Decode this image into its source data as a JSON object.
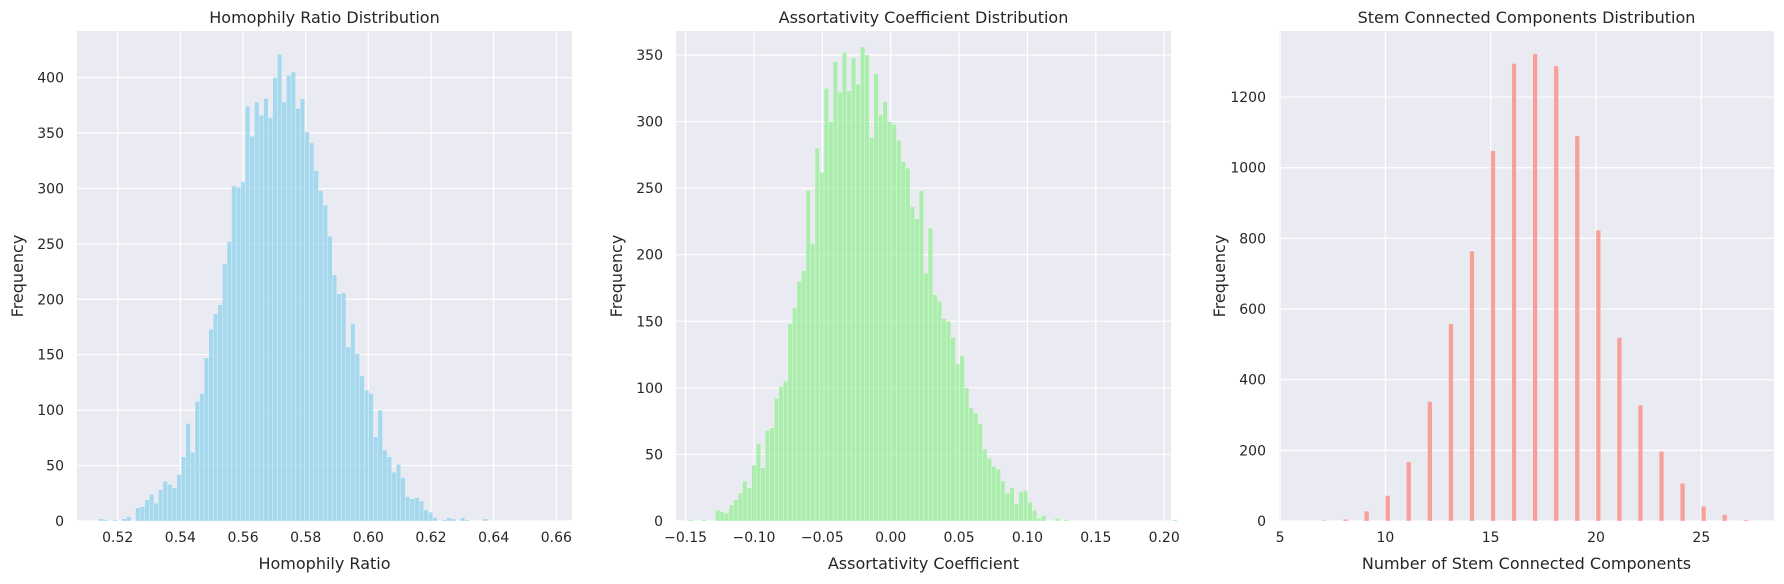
{
  "chart_data": [
    {
      "type": "bar",
      "title": "Homophily Ratio Distribution",
      "xlabel": "Homophily Ratio",
      "ylabel": "Frequency",
      "xlim": [
        0.507,
        0.665
      ],
      "ylim": [
        0,
        442
      ],
      "xticks": [
        0.52,
        0.54,
        0.56,
        0.58,
        0.6,
        0.62,
        0.64,
        0.66
      ],
      "xtick_labels": [
        "0.52",
        "0.54",
        "0.56",
        "0.58",
        "0.60",
        "0.62",
        "0.64",
        "0.66"
      ],
      "yticks": [
        0,
        50,
        100,
        150,
        200,
        250,
        300,
        350,
        400
      ],
      "ytick_labels": [
        "0",
        "50",
        "100",
        "150",
        "200",
        "250",
        "300",
        "350",
        "400"
      ],
      "color": "#87ceeb",
      "bins": {
        "start": 0.514,
        "width": 0.00146
      },
      "values": [
        2,
        1,
        0,
        1,
        0,
        2,
        4,
        0,
        12,
        13,
        19,
        24,
        16,
        28,
        36,
        33,
        30,
        42,
        58,
        88,
        62,
        108,
        115,
        147,
        173,
        187,
        195,
        232,
        252,
        302,
        301,
        306,
        374,
        347,
        378,
        366,
        381,
        364,
        400,
        421,
        378,
        402,
        405,
        372,
        381,
        351,
        341,
        316,
        298,
        285,
        257,
        222,
        205,
        206,
        157,
        178,
        151,
        131,
        118,
        115,
        76,
        100,
        64,
        58,
        44,
        51,
        39,
        22,
        20,
        21,
        18,
        10,
        8,
        3,
        0,
        1,
        3,
        2,
        0,
        3,
        1,
        0,
        0,
        0,
        2
      ]
    },
    {
      "type": "bar",
      "title": "Assortativity Coefficient Distribution",
      "xlabel": "Assortativity Coefficient",
      "ylabel": "Frequency",
      "xlim": [
        -0.157,
        0.205
      ],
      "ylim": [
        0,
        368
      ],
      "xticks": [
        -0.15,
        -0.1,
        -0.05,
        0.0,
        0.05,
        0.1,
        0.15,
        0.2
      ],
      "xtick_labels": [
        "−0.15",
        "−0.10",
        "−0.05",
        "0.00",
        "0.05",
        "0.10",
        "0.15",
        "0.20"
      ],
      "yticks": [
        0,
        50,
        100,
        150,
        200,
        250,
        300,
        350
      ],
      "ytick_labels": [
        "0",
        "50",
        "100",
        "150",
        "200",
        "250",
        "300",
        "350"
      ],
      "color": "#90ee90",
      "bins": {
        "start": -0.148,
        "width": 0.00331
      },
      "values": [
        1,
        0,
        0,
        1,
        0,
        0,
        8,
        7,
        6,
        12,
        16,
        21,
        30,
        25,
        42,
        58,
        40,
        68,
        70,
        92,
        101,
        105,
        148,
        160,
        180,
        188,
        248,
        208,
        280,
        262,
        325,
        300,
        345,
        322,
        352,
        323,
        348,
        328,
        356,
        350,
        288,
        336,
        305,
        315,
        300,
        298,
        286,
        270,
        265,
        236,
        227,
        248,
        186,
        220,
        170,
        165,
        152,
        150,
        138,
        118,
        124,
        100,
        85,
        81,
        73,
        54,
        47,
        41,
        39,
        30,
        21,
        25,
        13,
        22,
        23,
        14,
        8,
        2,
        4,
        0,
        0,
        2,
        0,
        1,
        0,
        0,
        0,
        0,
        0,
        0,
        0,
        0,
        0,
        0,
        0,
        0,
        0,
        0,
        0,
        0,
        0,
        0,
        0,
        0,
        0,
        0,
        0,
        1
      ]
    },
    {
      "type": "bar",
      "title": "Stem Connected Components Distribution",
      "xlabel": "Number of Stem Connected Components",
      "ylabel": "Frequency",
      "xlim": [
        4.95,
        28.45
      ],
      "ylim": [
        0,
        1387
      ],
      "xticks": [
        5,
        10,
        15,
        20,
        25
      ],
      "xtick_labels": [
        "5",
        "10",
        "15",
        "20",
        "25"
      ],
      "yticks": [
        0,
        200,
        400,
        600,
        800,
        1000,
        1200
      ],
      "ytick_labels": [
        "0",
        "200",
        "400",
        "600",
        "800",
        "1000",
        "1200"
      ],
      "color": "#fa8072",
      "bin_width": 0.22,
      "x": [
        7,
        8,
        9,
        10,
        11,
        12,
        13,
        14,
        15,
        16,
        17,
        18,
        19,
        20,
        21,
        22,
        23,
        24,
        25,
        26,
        27
      ],
      "values": [
        2,
        5,
        28,
        72,
        167,
        338,
        558,
        764,
        1048,
        1295,
        1322,
        1288,
        1090,
        823,
        519,
        328,
        197,
        107,
        42,
        18,
        3
      ]
    }
  ]
}
